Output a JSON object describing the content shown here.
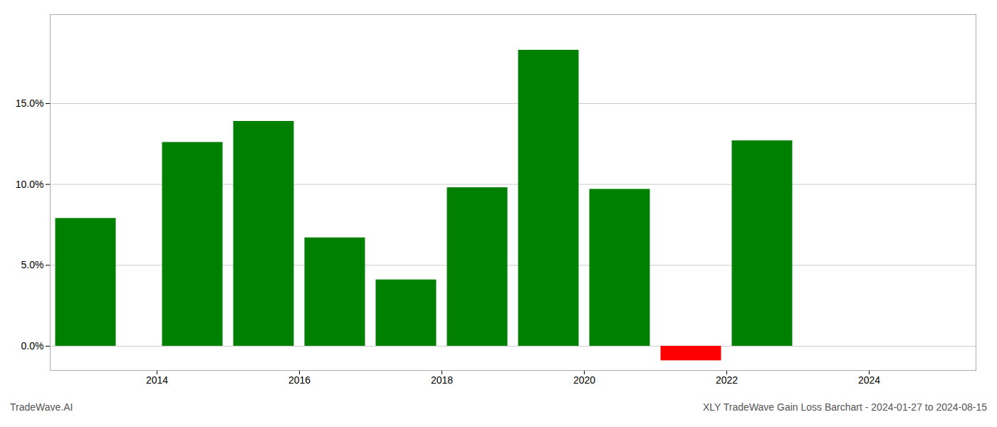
{
  "chart_data": {
    "type": "bar",
    "x": [
      2013.0,
      2014.5,
      2015.5,
      2016.5,
      2017.5,
      2018.5,
      2019.5,
      2020.5,
      2021.5,
      2022.5
    ],
    "values": [
      0.079,
      0.126,
      0.139,
      0.067,
      0.041,
      0.098,
      0.183,
      0.097,
      -0.009,
      0.127
    ],
    "colors": [
      "#008000",
      "#008000",
      "#008000",
      "#008000",
      "#008000",
      "#008000",
      "#008000",
      "#008000",
      "#ff0000",
      "#008000"
    ],
    "xlim": [
      2012.5,
      2025.5
    ],
    "xticks": [
      2014,
      2016,
      2018,
      2020,
      2022,
      2024
    ],
    "ylim": [
      -0.015,
      0.205
    ],
    "yticks": [
      {
        "value": 0.0,
        "label": "0.0%"
      },
      {
        "value": 0.05,
        "label": "5.0%"
      },
      {
        "value": 0.1,
        "label": "10.0%"
      },
      {
        "value": 0.15,
        "label": "15.0%"
      }
    ],
    "grid": true,
    "annotations": [
      "TradeWave.AI",
      "XLY TradeWave Gain Loss Barchart - 2024-01-27 to 2024-08-15"
    ]
  }
}
